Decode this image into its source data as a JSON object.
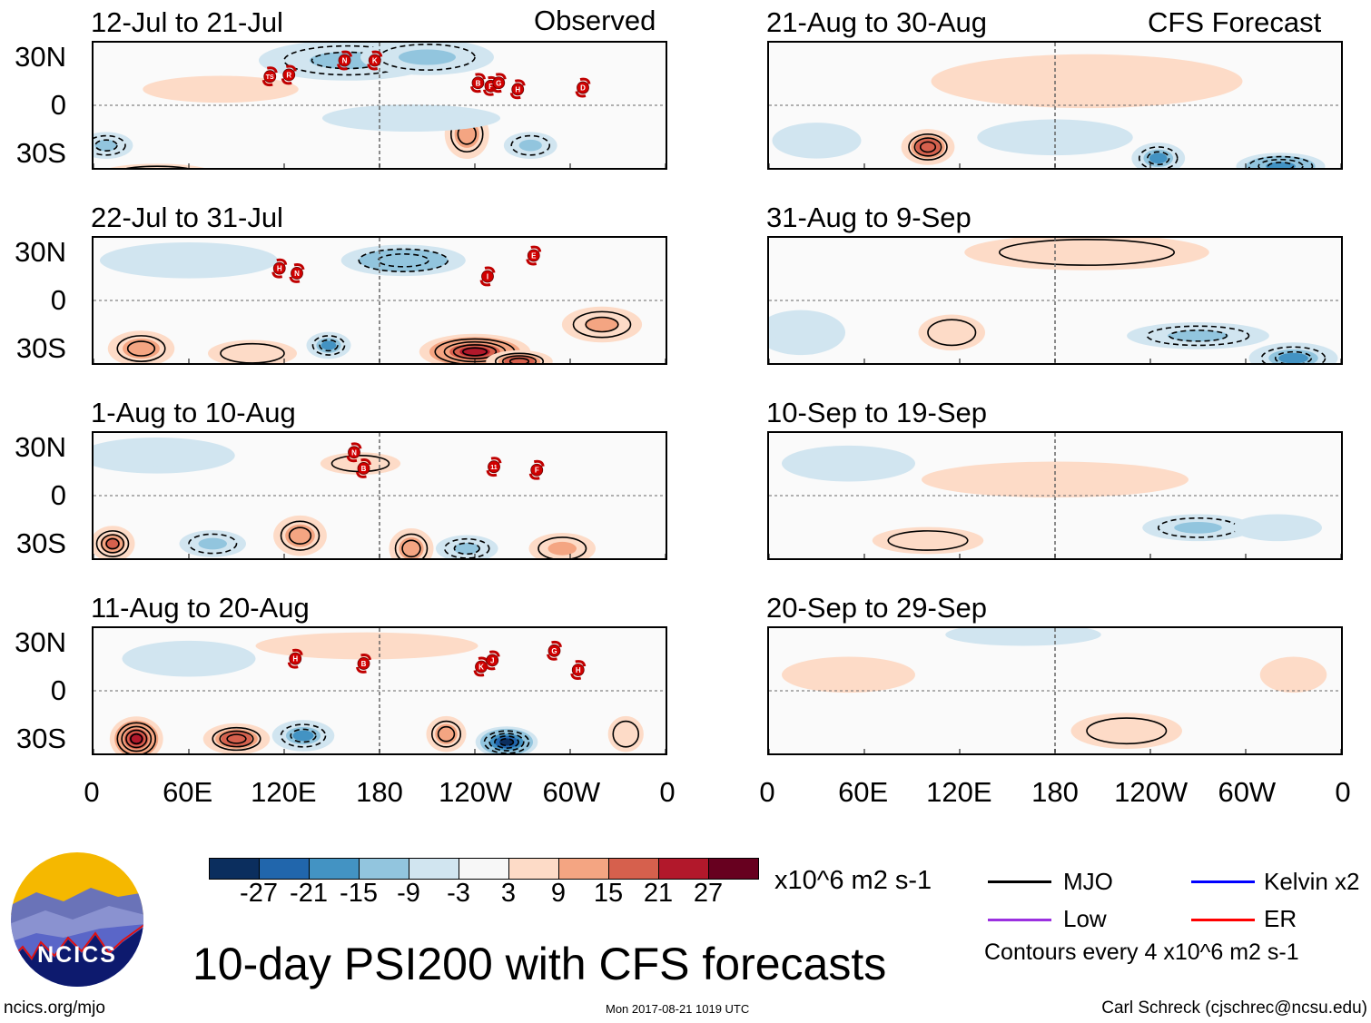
{
  "header": {
    "observed_label": "Observed",
    "forecast_label": "CFS Forecast"
  },
  "axes": {
    "y_ticks": [
      "30N",
      "0",
      "30S"
    ],
    "x_ticks": [
      "0",
      "60E",
      "120E",
      "180",
      "120W",
      "60W",
      "0"
    ]
  },
  "colors": {
    "scale": [
      "#0b2e5e",
      "#2166ac",
      "#4393c3",
      "#92c5de",
      "#d1e5f0",
      "#f7f7f7",
      "#fddbc7",
      "#f4a582",
      "#d6604d",
      "#b2182b",
      "#67001f"
    ]
  },
  "colorbar": {
    "labels": [
      "-27",
      "-21",
      "-15",
      "-9",
      "-3",
      "3",
      "9",
      "15",
      "21",
      "27"
    ],
    "units": "x10^6 m2 s-1"
  },
  "legend": {
    "items": [
      {
        "label": "MJO",
        "color": "#000000"
      },
      {
        "label": "Kelvin x2",
        "color": "#0000ff"
      },
      {
        "label": "Low",
        "color": "#9b30e0"
      },
      {
        "label": "ER",
        "color": "#ff0000"
      }
    ],
    "contour_note": "Contours every 4 x10^6 m2 s-1"
  },
  "title": "10-day PSI200 with CFS forecasts",
  "footer": {
    "left": "ncics.org/mjo",
    "center": "Mon 2017-08-21 1019 UTC",
    "right": "Carl Schreck (cjschrec@ncsu.edu)"
  },
  "logo": {
    "text": "NCICS"
  },
  "panels": [
    {
      "title": "12-Jul to 21-Jul",
      "kind": "observed",
      "anomalies": [
        {
          "lon": 160,
          "lat": 28,
          "v": -12,
          "rx": 40,
          "ry": 9
        },
        {
          "lon": 210,
          "lat": 30,
          "v": -9,
          "rx": 30,
          "ry": 8
        },
        {
          "lon": 235,
          "lat": -18,
          "v": 15,
          "rx": 10,
          "ry": 11
        },
        {
          "lon": 275,
          "lat": -25,
          "v": -10,
          "rx": 12,
          "ry": 6
        },
        {
          "lon": 8,
          "lat": -25,
          "v": -12,
          "rx": 12,
          "ry": 6
        },
        {
          "lon": 40,
          "lat": -42,
          "v": 12,
          "rx": 25,
          "ry": 4
        },
        {
          "lon": 80,
          "lat": 10,
          "v": 5,
          "rx": 35,
          "ry": 6
        },
        {
          "lon": 200,
          "lat": -8,
          "v": -5,
          "rx": 40,
          "ry": 6
        }
      ],
      "storms": [
        {
          "id": "TS",
          "lon": 111,
          "lat": 18
        },
        {
          "id": "R",
          "lon": 123,
          "lat": 19
        },
        {
          "id": "N",
          "lon": 158,
          "lat": 28
        },
        {
          "id": "K",
          "lon": 177,
          "lat": 28
        },
        {
          "id": "B",
          "lon": 242,
          "lat": 14
        },
        {
          "id": "F",
          "lon": 250,
          "lat": 12
        },
        {
          "id": "G",
          "lon": 255,
          "lat": 14
        },
        {
          "id": "H",
          "lon": 267,
          "lat": 10
        },
        {
          "id": "D",
          "lon": 308,
          "lat": 11
        }
      ]
    },
    {
      "title": "22-Jul to 31-Jul",
      "kind": "observed",
      "anomalies": [
        {
          "lon": 195,
          "lat": 25,
          "v": -14,
          "rx": 28,
          "ry": 7
        },
        {
          "lon": 240,
          "lat": -32,
          "v": 25,
          "rx": 25,
          "ry": 8
        },
        {
          "lon": 268,
          "lat": -38,
          "v": 21,
          "rx": 15,
          "ry": 5
        },
        {
          "lon": 148,
          "lat": -28,
          "v": -15,
          "rx": 10,
          "ry": 6
        },
        {
          "lon": 30,
          "lat": -30,
          "v": 15,
          "rx": 15,
          "ry": 8
        },
        {
          "lon": 320,
          "lat": -15,
          "v": 12,
          "rx": 18,
          "ry": 8
        },
        {
          "lon": 100,
          "lat": -33,
          "v": 9,
          "rx": 20,
          "ry": 6
        },
        {
          "lon": 60,
          "lat": 25,
          "v": -5,
          "rx": 40,
          "ry": 8
        }
      ],
      "storms": [
        {
          "id": "H",
          "lon": 117,
          "lat": 20
        },
        {
          "id": "N",
          "lon": 128,
          "lat": 17
        },
        {
          "id": "I",
          "lon": 248,
          "lat": 15
        },
        {
          "id": "E",
          "lon": 277,
          "lat": 28
        }
      ]
    },
    {
      "title": "1-Aug to 10-Aug",
      "kind": "observed",
      "anomalies": [
        {
          "lon": 12,
          "lat": -30,
          "v": 18,
          "rx": 10,
          "ry": 8
        },
        {
          "lon": 130,
          "lat": -25,
          "v": 15,
          "rx": 12,
          "ry": 9
        },
        {
          "lon": 200,
          "lat": -33,
          "v": 15,
          "rx": 10,
          "ry": 9
        },
        {
          "lon": 235,
          "lat": -33,
          "v": -12,
          "rx": 14,
          "ry": 6
        },
        {
          "lon": 168,
          "lat": 20,
          "v": 8,
          "rx": 18,
          "ry": 5
        },
        {
          "lon": 75,
          "lat": -30,
          "v": -9,
          "rx": 15,
          "ry": 6
        },
        {
          "lon": 295,
          "lat": -33,
          "v": 10,
          "rx": 15,
          "ry": 7
        },
        {
          "lon": 40,
          "lat": 25,
          "v": -5,
          "rx": 35,
          "ry": 8
        }
      ],
      "storms": [
        {
          "id": "N",
          "lon": 164,
          "lat": 27
        },
        {
          "id": "B",
          "lon": 170,
          "lat": 17
        },
        {
          "id": "11",
          "lon": 252,
          "lat": 18
        },
        {
          "id": "F",
          "lon": 279,
          "lat": 16
        }
      ]
    },
    {
      "title": "11-Aug to 20-Aug",
      "kind": "observed",
      "anomalies": [
        {
          "lon": 27,
          "lat": -30,
          "v": 25,
          "rx": 12,
          "ry": 10
        },
        {
          "lon": 90,
          "lat": -30,
          "v": 21,
          "rx": 15,
          "ry": 7
        },
        {
          "lon": 132,
          "lat": -28,
          "v": -15,
          "rx": 14,
          "ry": 7
        },
        {
          "lon": 222,
          "lat": -27,
          "v": 15,
          "rx": 9,
          "ry": 8
        },
        {
          "lon": 260,
          "lat": -32,
          "v": -27,
          "rx": 14,
          "ry": 7
        },
        {
          "lon": 172,
          "lat": 28,
          "v": 5,
          "rx": 50,
          "ry": 6
        },
        {
          "lon": 335,
          "lat": -27,
          "v": 9,
          "rx": 8,
          "ry": 8
        },
        {
          "lon": 60,
          "lat": 20,
          "v": -5,
          "rx": 30,
          "ry": 8
        }
      ],
      "storms": [
        {
          "id": "H",
          "lon": 127,
          "lat": 20
        },
        {
          "id": "B",
          "lon": 170,
          "lat": 17
        },
        {
          "id": "K",
          "lon": 244,
          "lat": 15
        },
        {
          "id": "J",
          "lon": 251,
          "lat": 19
        },
        {
          "id": "G",
          "lon": 290,
          "lat": 25
        },
        {
          "id": "H",
          "lon": 305,
          "lat": 13
        }
      ]
    },
    {
      "title": "21-Aug to 30-Aug",
      "kind": "forecast",
      "anomalies": [
        {
          "lon": 100,
          "lat": -26,
          "v": 21,
          "rx": 12,
          "ry": 8
        },
        {
          "lon": 245,
          "lat": -33,
          "v": -15,
          "rx": 12,
          "ry": 7
        },
        {
          "lon": 322,
          "lat": -38,
          "v": -18,
          "rx": 20,
          "ry": 6
        },
        {
          "lon": 200,
          "lat": 15,
          "v": 5,
          "rx": 70,
          "ry": 12
        },
        {
          "lon": 30,
          "lat": -22,
          "v": -6,
          "rx": 20,
          "ry": 8
        },
        {
          "lon": 180,
          "lat": -20,
          "v": -4,
          "rx": 35,
          "ry": 8
        }
      ],
      "storms": []
    },
    {
      "title": "31-Aug to 9-Sep",
      "kind": "forecast",
      "anomalies": [
        {
          "lon": 200,
          "lat": 30,
          "v": 9,
          "rx": 55,
          "ry": 8
        },
        {
          "lon": 270,
          "lat": -22,
          "v": -12,
          "rx": 32,
          "ry": 6
        },
        {
          "lon": 330,
          "lat": -36,
          "v": -15,
          "rx": 20,
          "ry": 7
        },
        {
          "lon": 115,
          "lat": -20,
          "v": 8,
          "rx": 15,
          "ry": 8
        },
        {
          "lon": 20,
          "lat": -20,
          "v": -6,
          "rx": 20,
          "ry": 10
        }
      ],
      "storms": []
    },
    {
      "title": "10-Sep to 19-Sep",
      "kind": "forecast",
      "anomalies": [
        {
          "lon": 100,
          "lat": -28,
          "v": 9,
          "rx": 25,
          "ry": 6
        },
        {
          "lon": 270,
          "lat": -20,
          "v": -9,
          "rx": 25,
          "ry": 6
        },
        {
          "lon": 180,
          "lat": 10,
          "v": 4,
          "rx": 60,
          "ry": 8
        },
        {
          "lon": 50,
          "lat": 20,
          "v": -4,
          "rx": 30,
          "ry": 8
        },
        {
          "lon": 320,
          "lat": -20,
          "v": -5,
          "rx": 20,
          "ry": 6
        }
      ],
      "storms": []
    },
    {
      "title": "20-Sep to 29-Sep",
      "kind": "forecast",
      "anomalies": [
        {
          "lon": 225,
          "lat": -25,
          "v": 9,
          "rx": 25,
          "ry": 8
        },
        {
          "lon": 160,
          "lat": 35,
          "v": -4,
          "rx": 35,
          "ry": 5
        },
        {
          "lon": 50,
          "lat": 10,
          "v": 4,
          "rx": 30,
          "ry": 8
        },
        {
          "lon": 330,
          "lat": 10,
          "v": 4,
          "rx": 15,
          "ry": 8
        }
      ],
      "storms": []
    }
  ]
}
